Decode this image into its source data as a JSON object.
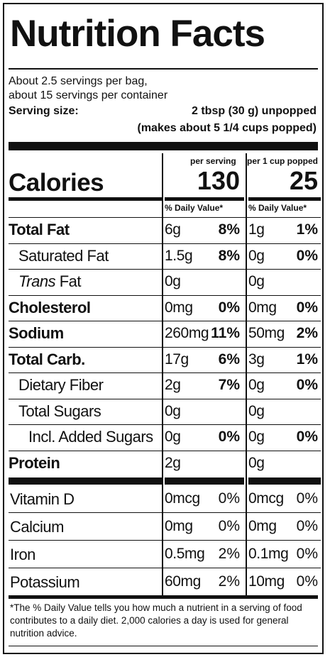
{
  "title": "Nutrition Facts",
  "servings": {
    "line1": "About 2.5 servings per bag,",
    "line2": "about 15 servings per container",
    "size_label": "Serving size:",
    "size_value": "2 tbsp (30 g) unpopped",
    "size_note": "(makes about 5 1/4 cups popped)"
  },
  "columns": {
    "per_serving": "per serving",
    "per_cup": "per 1 cup popped",
    "daily_value": "% Daily Value*"
  },
  "calories": {
    "label": "Calories",
    "per_serving": "130",
    "per_cup": "25"
  },
  "nutrients": [
    {
      "name": "Total Fat",
      "bold": true,
      "indent": 0,
      "a1": "6g",
      "p1": "8%",
      "a2": "1g",
      "p2": "1%"
    },
    {
      "name": "Saturated Fat",
      "bold": false,
      "indent": 1,
      "a1": "1.5g",
      "p1": "8%",
      "a2": "0g",
      "p2": "0%"
    },
    {
      "name_italic": "Trans",
      "name": " Fat",
      "bold": false,
      "indent": 1,
      "a1": "0g",
      "p1": "",
      "a2": "0g",
      "p2": ""
    },
    {
      "name": "Cholesterol",
      "bold": true,
      "indent": 0,
      "a1": "0mg",
      "p1": "0%",
      "a2": "0mg",
      "p2": "0%"
    },
    {
      "name": "Sodium",
      "bold": true,
      "indent": 0,
      "a1": "260mg",
      "p1": "11%",
      "a2": "50mg",
      "p2": "2%"
    },
    {
      "name": "Total Carb.",
      "bold": true,
      "indent": 0,
      "a1": "17g",
      "p1": "6%",
      "a2": "3g",
      "p2": "1%"
    },
    {
      "name": "Dietary Fiber",
      "bold": false,
      "indent": 1,
      "a1": "2g",
      "p1": "7%",
      "a2": "0g",
      "p2": "0%"
    },
    {
      "name": "Total Sugars",
      "bold": false,
      "indent": 1,
      "a1": "0g",
      "p1": "",
      "a2": "0g",
      "p2": ""
    },
    {
      "name": "Incl. Added Sugars",
      "bold": false,
      "indent": 2,
      "a1": "0g",
      "p1": "0%",
      "a2": "0g",
      "p2": "0%"
    },
    {
      "name": "Protein",
      "bold": true,
      "indent": 0,
      "a1": "2g",
      "p1": "",
      "a2": "0g",
      "p2": ""
    }
  ],
  "vitamins": [
    {
      "name": "Vitamin D",
      "a1": "0mcg",
      "p1": "0%",
      "a2": "0mcg",
      "p2": "0%"
    },
    {
      "name": "Calcium",
      "a1": "0mg",
      "p1": "0%",
      "a2": "0mg",
      "p2": "0%"
    },
    {
      "name": "Iron",
      "a1": "0.5mg",
      "p1": "2%",
      "a2": "0.1mg",
      "p2": "0%"
    },
    {
      "name": "Potassium",
      "a1": "60mg",
      "p1": "2%",
      "a2": "10mg",
      "p2": "0%"
    }
  ],
  "footnote": "*The % Daily Value tells you how much a nutrient in a serving of food contributes to a daily diet. 2,000 calories a day is used for general nutrition advice."
}
